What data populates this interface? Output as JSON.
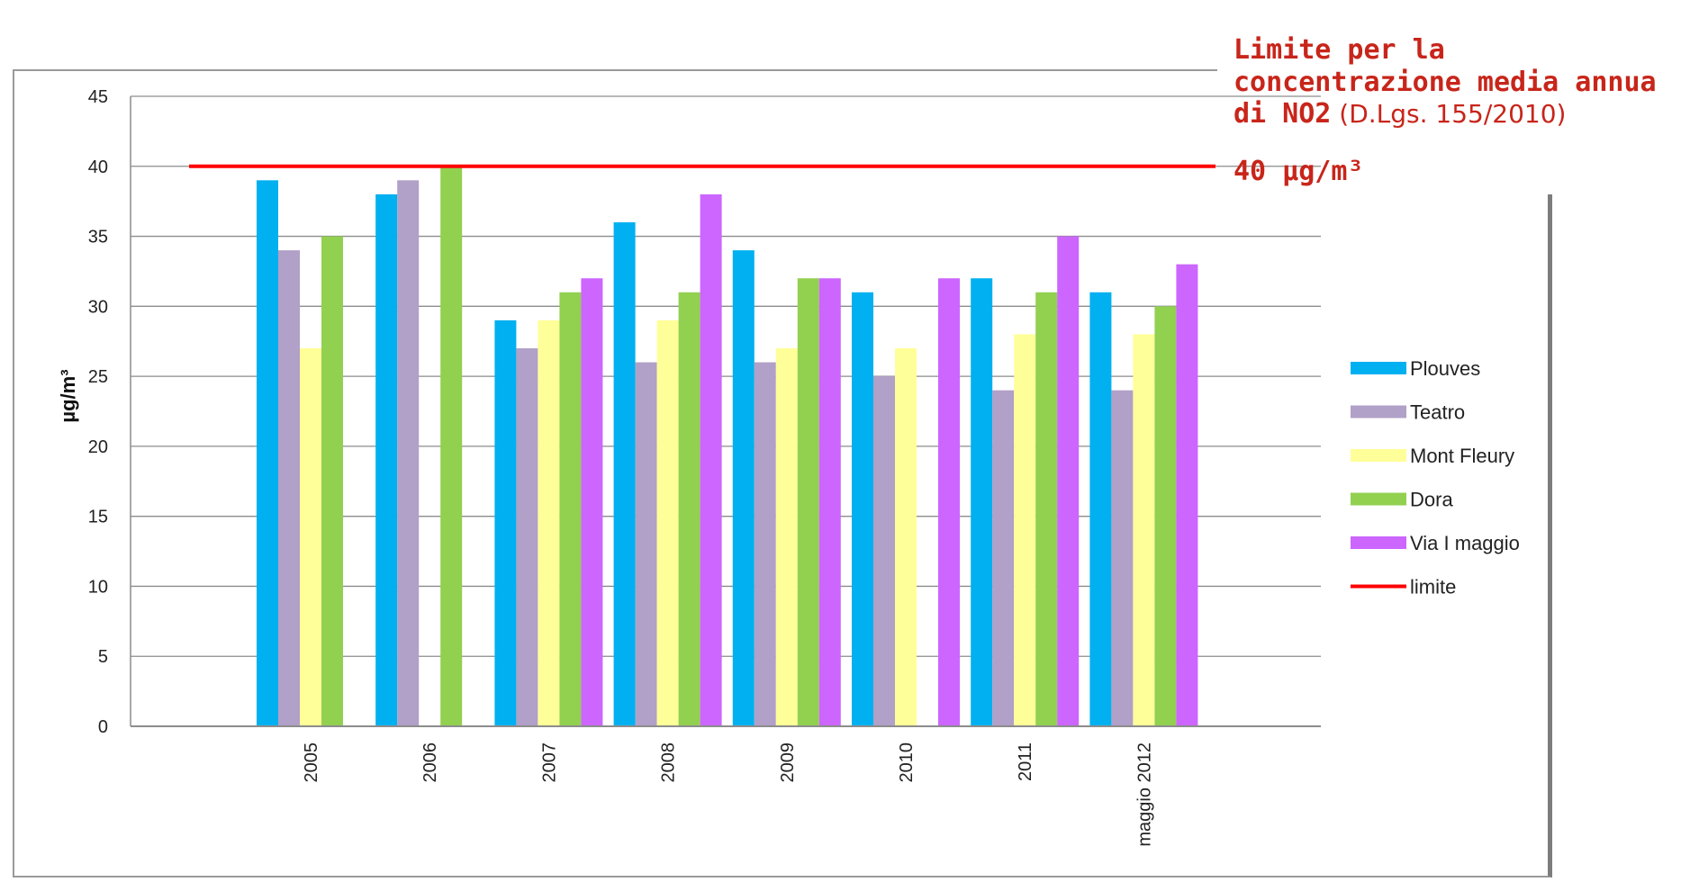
{
  "chart_data": {
    "type": "bar",
    "categories": [
      "2005",
      "2006",
      "2007",
      "2008",
      "2009",
      "2010",
      "2011",
      "maggio 2012"
    ],
    "series": [
      {
        "name": "Plouves",
        "color": "#00b0f0",
        "values": [
          39,
          38,
          29,
          36,
          34,
          31,
          32,
          31
        ]
      },
      {
        "name": "Teatro",
        "color": "#b1a0c7",
        "values": [
          34,
          39,
          27,
          26,
          26,
          25,
          24,
          24
        ]
      },
      {
        "name": "Mont Fleury",
        "color": "#ffff99",
        "values": [
          27,
          null,
          29,
          29,
          27,
          27,
          28,
          28
        ]
      },
      {
        "name": "Dora",
        "color": "#92d050",
        "values": [
          35,
          40,
          31,
          31,
          32,
          null,
          31,
          30
        ]
      },
      {
        "name": "Via I maggio",
        "color": "#cc66ff",
        "values": [
          null,
          null,
          32,
          38,
          32,
          32,
          35,
          33
        ]
      }
    ],
    "limit": {
      "name": "limite",
      "value": 40,
      "color": "#ff0000"
    },
    "ylabel": "µg/m³",
    "xlabel": "",
    "ylim": [
      0,
      45
    ],
    "yticks": [
      "0",
      "5",
      "10",
      "15",
      "20",
      "25",
      "30",
      "35",
      "40",
      "45"
    ],
    "grid": true,
    "legend_position": "right"
  },
  "annotation": {
    "line1": "Limite per la",
    "line2": "concentrazione media annua",
    "line3_bold": "di NO2",
    "line3_light": " (D.Lgs. 155/2010)",
    "value_label": "40 µg/m³"
  }
}
